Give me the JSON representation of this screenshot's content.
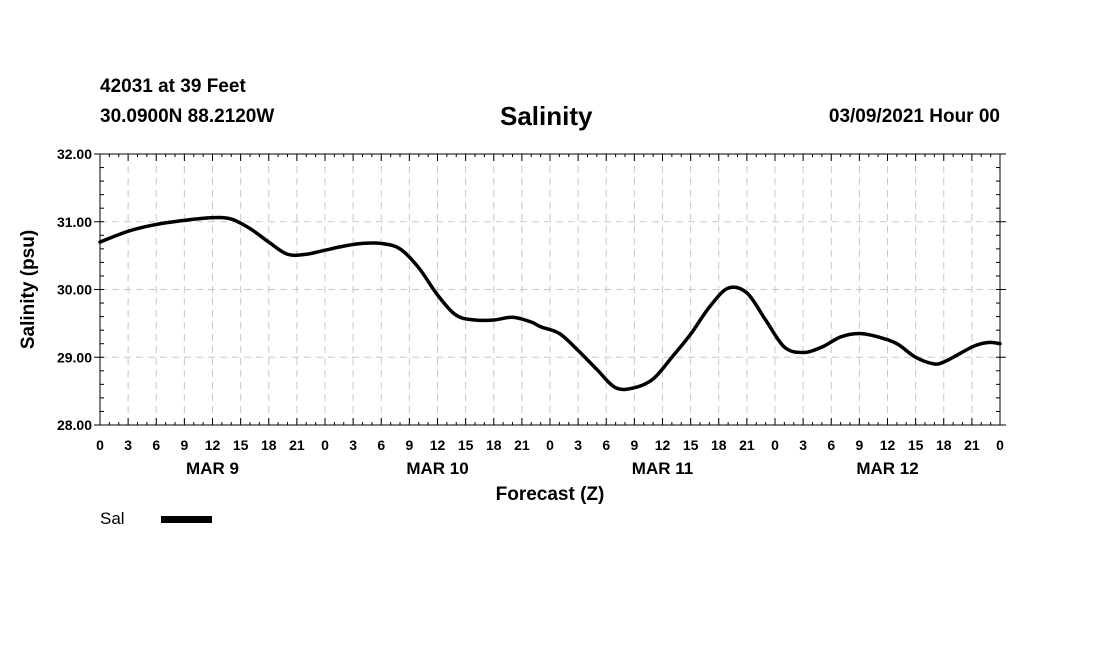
{
  "header": {
    "station": "42031 at 39 Feet",
    "coords": "30.0900N 88.2120W",
    "title": "Salinity",
    "timestamp": "03/09/2021 Hour 00"
  },
  "chart_data": {
    "type": "line",
    "title": "Salinity",
    "xlabel": "Forecast (Z)",
    "ylabel": "Salinity (psu)",
    "xlim": [
      0,
      96
    ],
    "ylim": [
      28,
      32
    ],
    "grid": true,
    "y_ticks": [
      "28.00",
      "29.00",
      "30.00",
      "31.00",
      "32.00"
    ],
    "x_tick_labels": [
      "0",
      "3",
      "6",
      "9",
      "12",
      "15",
      "18",
      "21",
      "0",
      "3",
      "6",
      "9",
      "12",
      "15",
      "18",
      "21",
      "0",
      "3",
      "6",
      "9",
      "12",
      "15",
      "18",
      "21",
      "0",
      "3",
      "6",
      "9",
      "12",
      "15",
      "18",
      "21",
      "0"
    ],
    "day_labels": [
      {
        "label": "MAR 9",
        "hour": 12
      },
      {
        "label": "MAR 10",
        "hour": 36
      },
      {
        "label": "MAR 11",
        "hour": 60
      },
      {
        "label": "MAR 12",
        "hour": 84
      }
    ],
    "legend": {
      "position": "bottom-left",
      "entries": [
        "Sal"
      ]
    },
    "series": [
      {
        "name": "Sal",
        "color": "#000000",
        "x": [
          0,
          3,
          6,
          9,
          12,
          14,
          16,
          18,
          20,
          22,
          24,
          26,
          28,
          30,
          32,
          34,
          36,
          38,
          40,
          42,
          44,
          46,
          47,
          49,
          51,
          53,
          55,
          57,
          59,
          61,
          63,
          65,
          67,
          69,
          71,
          73,
          75,
          77,
          79,
          81,
          83,
          85,
          87,
          89,
          90,
          91,
          93,
          94,
          95,
          96
        ],
        "y": [
          30.7,
          30.86,
          30.96,
          31.02,
          31.06,
          31.04,
          30.9,
          30.7,
          30.52,
          30.52,
          30.58,
          30.64,
          30.68,
          30.68,
          30.6,
          30.32,
          29.92,
          29.62,
          29.55,
          29.55,
          29.59,
          29.52,
          29.45,
          29.35,
          29.1,
          28.82,
          28.55,
          28.55,
          28.68,
          29.0,
          29.34,
          29.74,
          30.02,
          29.95,
          29.55,
          29.15,
          29.07,
          29.15,
          29.3,
          29.35,
          29.3,
          29.2,
          29.0,
          28.9,
          28.93,
          29.0,
          29.15,
          29.2,
          29.22,
          29.2
        ]
      }
    ]
  },
  "legend": {
    "label": "Sal"
  }
}
